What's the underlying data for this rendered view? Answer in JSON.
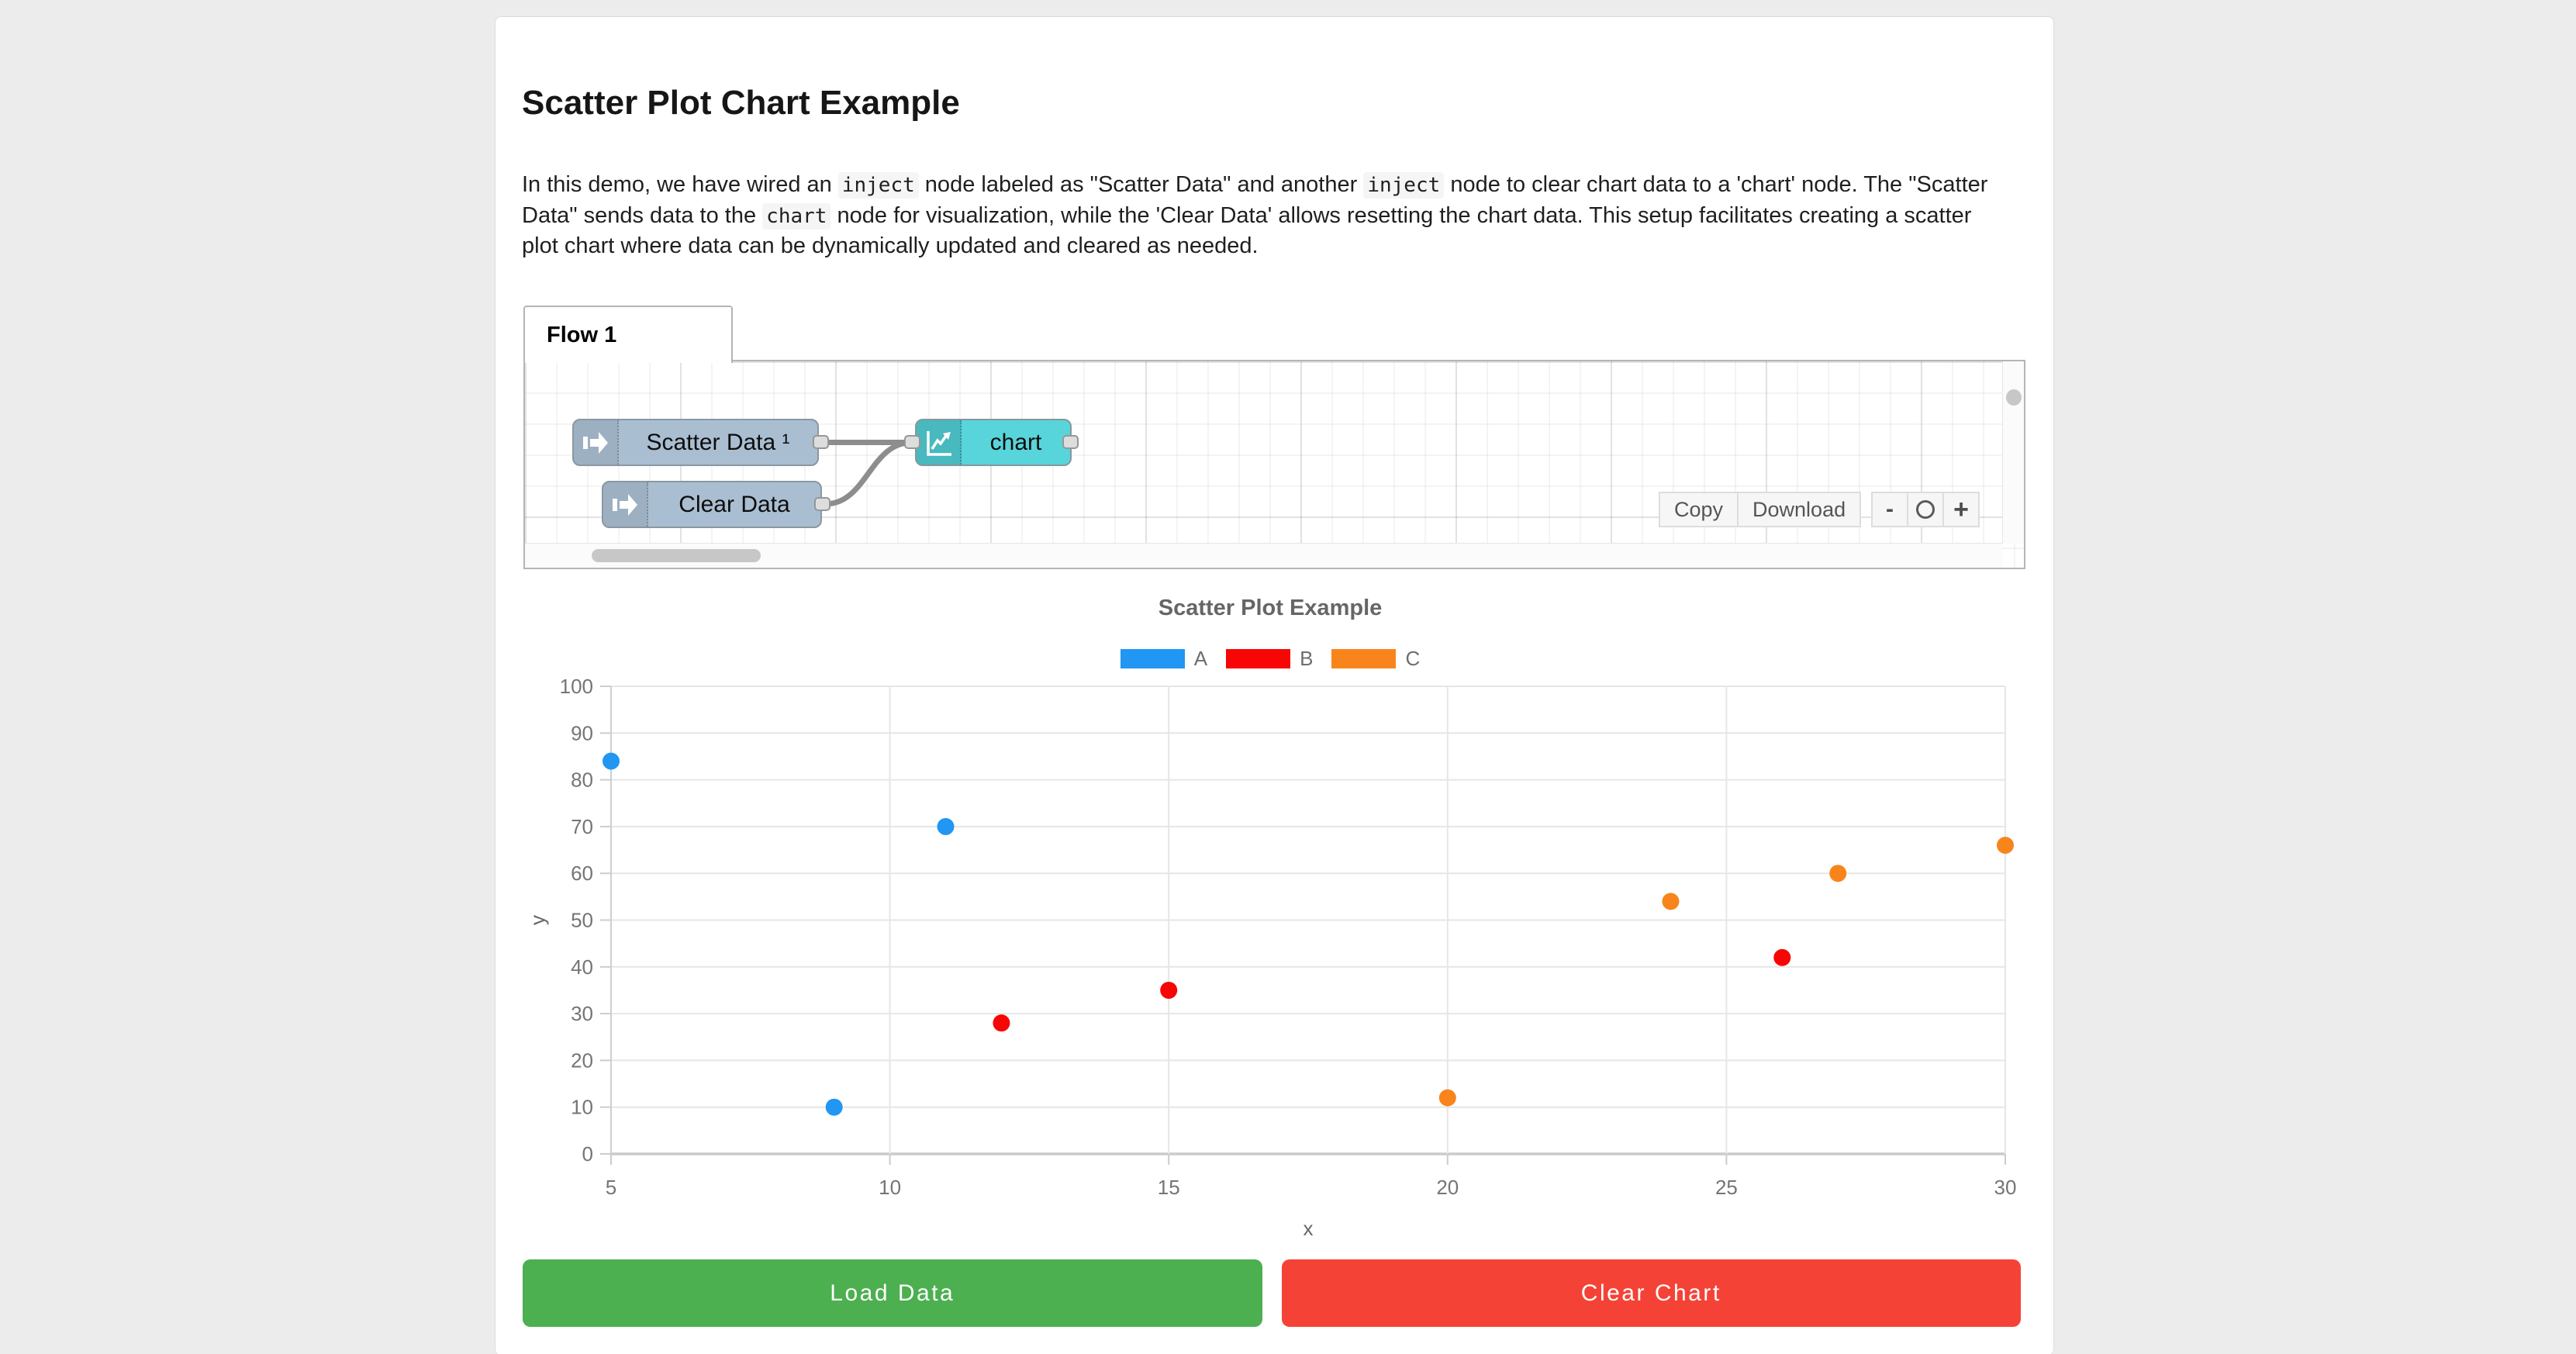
{
  "page": {
    "title": "Scatter Plot Chart Example"
  },
  "description_lines": [
    {
      "segments": [
        {
          "text": "In this demo, we have wired an "
        },
        {
          "code": "inject"
        },
        {
          "text": " node labeled as \"Scatter Data\" and another "
        },
        {
          "code": "inject"
        },
        {
          "text": " node to clear chart data to a 'chart' node. The \"Scatter"
        }
      ]
    },
    {
      "segments": [
        {
          "text": "Data\" sends data to the "
        },
        {
          "code": "chart"
        },
        {
          "text": " node for visualization, while the 'Clear Data' allows resetting the chart data. This setup facilitates creating a scatter"
        }
      ]
    },
    {
      "segments": [
        {
          "text": "plot chart where data can be dynamically updated and cleared as needed."
        }
      ]
    }
  ],
  "flow": {
    "tab_label": "Flow 1",
    "nodes": {
      "scatter_inject": {
        "label": "Scatter Data ¹",
        "type": "inject"
      },
      "clear_inject": {
        "label": "Clear Data",
        "type": "inject"
      },
      "chart": {
        "label": "chart",
        "type": "chart"
      }
    },
    "node_colors": {
      "inject": "#a9bed1",
      "chart": "#57d5da"
    },
    "toolbar": {
      "copy_label": "Copy",
      "download_label": "Download"
    },
    "zoom_controls": {
      "out": "-",
      "in": "+"
    }
  },
  "chart_data": {
    "type": "scatter",
    "title": "Scatter Plot Example",
    "xlabel": "x",
    "ylabel": "y",
    "xlim": [
      5,
      30
    ],
    "ylim": [
      0,
      100
    ],
    "x_ticks": [
      5,
      10,
      15,
      20,
      25,
      30
    ],
    "y_ticks": [
      0,
      10,
      20,
      30,
      40,
      50,
      60,
      70,
      80,
      90,
      100
    ],
    "grid": true,
    "legend_position": "top",
    "series": [
      {
        "name": "A",
        "color": "#2196F3",
        "points": [
          [
            5,
            84
          ],
          [
            9,
            10
          ],
          [
            11,
            70
          ]
        ]
      },
      {
        "name": "B",
        "color": "#F80505",
        "points": [
          [
            12,
            28
          ],
          [
            15,
            35
          ],
          [
            26,
            42
          ]
        ]
      },
      {
        "name": "C",
        "color": "#F8851B",
        "points": [
          [
            20,
            12
          ],
          [
            24,
            54
          ],
          [
            27,
            60
          ],
          [
            30,
            66
          ]
        ]
      }
    ]
  },
  "buttons": {
    "load_label": "Load Data",
    "clear_label": "Clear Chart",
    "load_color": "#4CAF50",
    "clear_color": "#F44336"
  }
}
